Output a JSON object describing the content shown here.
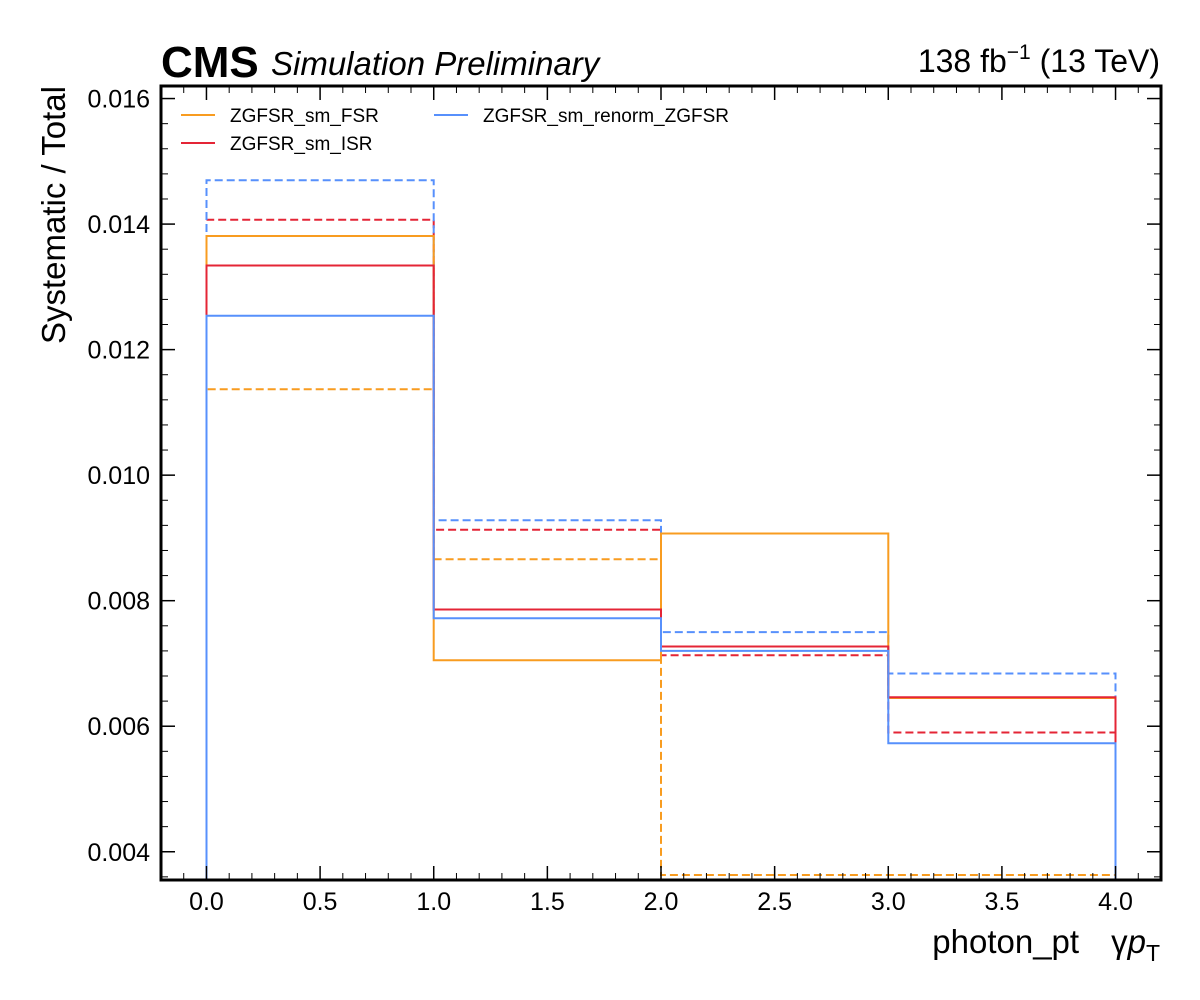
{
  "header": {
    "experiment": "CMS",
    "status": "Simulation Preliminary",
    "lumi_value": "138 fb",
    "lumi_exp": "−1",
    "energy": " (13 TeV)"
  },
  "axes": {
    "ylabel": "Systematic / Total",
    "xlabel_main": "photon_pt",
    "xlabel_gamma": "γ",
    "xlabel_p": "p",
    "xlabel_sub": "T"
  },
  "chart_data": {
    "type": "line",
    "style": "step histogram",
    "bin_edges": [
      0.0,
      1.0,
      2.0,
      3.0,
      4.0
    ],
    "xlim": [
      -0.2,
      4.2
    ],
    "ylim": [
      0.00355,
      0.0162
    ],
    "xticks": [
      0.0,
      0.5,
      1.0,
      1.5,
      2.0,
      2.5,
      3.0,
      3.5,
      4.0
    ],
    "xtick_labels": [
      "0.0",
      "0.5",
      "1.0",
      "1.5",
      "2.0",
      "2.5",
      "3.0",
      "3.5",
      "4.0"
    ],
    "yticks": [
      0.004,
      0.006,
      0.008,
      0.01,
      0.012,
      0.014,
      0.016
    ],
    "ytick_labels": [
      "0.004",
      "0.006",
      "0.008",
      "0.010",
      "0.012",
      "0.014",
      "0.016"
    ],
    "grid": false,
    "legend": "top-left",
    "series": [
      {
        "name": "ZGFSR_sm_FSR",
        "color": "#f89c20",
        "variant": "up",
        "values": [
          0.01381,
          0.00705,
          0.00907,
          0.00645
        ]
      },
      {
        "color": "#f89c20",
        "variant": "down",
        "values": [
          0.01137,
          0.00866,
          0.00363,
          0.00363
        ]
      },
      {
        "name": "ZGFSR_sm_ISR",
        "color": "#e42536",
        "variant": "up",
        "values": [
          0.01334,
          0.00786,
          0.00727,
          0.00646
        ]
      },
      {
        "color": "#e42536",
        "variant": "down",
        "values": [
          0.01407,
          0.00913,
          0.00713,
          0.0059
        ]
      },
      {
        "name": "ZGFSR_sm_renorm_ZGFSR",
        "color": "#5790fc",
        "variant": "up",
        "values": [
          0.01254,
          0.00772,
          0.0072,
          0.00573
        ]
      },
      {
        "color": "#5790fc",
        "variant": "down",
        "values": [
          0.0147,
          0.00928,
          0.0075,
          0.00684
        ]
      }
    ]
  }
}
